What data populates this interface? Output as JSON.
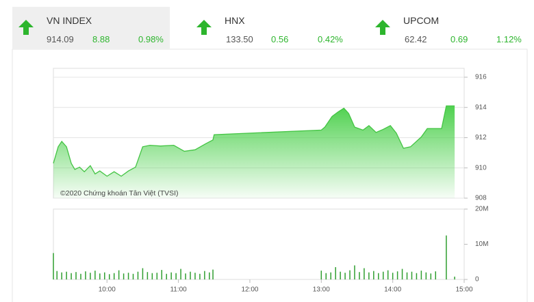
{
  "indices": [
    {
      "name": "VN INDEX",
      "value": "914.09",
      "change": "8.88",
      "percent": "0.98%"
    },
    {
      "name": "HNX",
      "value": "133.50",
      "change": "0.56",
      "percent": "0.42%"
    },
    {
      "name": "UPCOM",
      "value": "62.42",
      "change": "0.69",
      "percent": "1.12%"
    }
  ],
  "chart_data": [
    {
      "type": "area",
      "annotation": "©2020 Chứng khoán Tân Việt (TVSI)",
      "color": "#43c443",
      "x": [
        555,
        559,
        562,
        566,
        570,
        573,
        577,
        581,
        586,
        590,
        594,
        600,
        606,
        612,
        618,
        624,
        630,
        636,
        645,
        656,
        665,
        674,
        683,
        689,
        690,
        780,
        783,
        789,
        794,
        799,
        803,
        808,
        815,
        820,
        826,
        832,
        838,
        843,
        849,
        855,
        864,
        869,
        881,
        885,
        892
      ],
      "values": [
        910.3,
        911.4,
        911.75,
        911.4,
        910.3,
        909.9,
        910.05,
        909.75,
        910.15,
        909.6,
        909.8,
        909.45,
        909.75,
        909.45,
        909.8,
        910.05,
        911.4,
        911.5,
        911.45,
        911.5,
        911.1,
        911.2,
        911.6,
        911.85,
        912.2,
        912.5,
        912.7,
        913.4,
        913.7,
        913.95,
        913.6,
        912.7,
        912.5,
        912.8,
        912.35,
        912.55,
        912.8,
        912.3,
        911.3,
        911.4,
        912.05,
        912.6,
        912.6,
        914.1,
        914.1
      ],
      "xlim": [
        555,
        900
      ],
      "ylim": [
        908,
        916
      ],
      "yticks": [
        908,
        910,
        912,
        914,
        916
      ],
      "grid": true
    },
    {
      "type": "bar",
      "color": "#2f9e2f",
      "x": [
        555,
        558,
        562,
        566,
        570,
        574,
        578,
        582,
        586,
        590,
        594,
        598,
        602,
        606,
        610,
        614,
        618,
        622,
        626,
        630,
        634,
        638,
        642,
        646,
        650,
        654,
        658,
        662,
        666,
        670,
        674,
        678,
        682,
        686,
        689,
        780,
        784,
        788,
        792,
        796,
        800,
        804,
        808,
        812,
        816,
        820,
        824,
        828,
        832,
        836,
        840,
        844,
        848,
        852,
        856,
        860,
        864,
        868,
        872,
        876,
        885,
        892
      ],
      "values": [
        7500000,
        2400000,
        2000000,
        2200000,
        1800000,
        2100000,
        1600000,
        2300000,
        1900000,
        2500000,
        1700000,
        2000000,
        1500000,
        1800000,
        2600000,
        1700000,
        1900000,
        1600000,
        2200000,
        3200000,
        2100000,
        1800000,
        1900000,
        2700000,
        1600000,
        2000000,
        1800000,
        3000000,
        1700000,
        2200000,
        1900000,
        1600000,
        2400000,
        2000000,
        2800000,
        2500000,
        1800000,
        2000000,
        3500000,
        2200000,
        1900000,
        2600000,
        4000000,
        2100000,
        3200000,
        2000000,
        2400000,
        1800000,
        2200000,
        2600000,
        1900000,
        2300000,
        3000000,
        2000000,
        2200000,
        1800000,
        2500000,
        2000000,
        1700000,
        2300000,
        12500000,
        800000
      ],
      "xlim": [
        555,
        900
      ],
      "xticks": [
        {
          "value": 600,
          "label": "10:00"
        },
        {
          "value": 660,
          "label": "11:00"
        },
        {
          "value": 720,
          "label": "12:00"
        },
        {
          "value": 780,
          "label": "13:00"
        },
        {
          "value": 840,
          "label": "14:00"
        },
        {
          "value": 900,
          "label": "15:00"
        }
      ],
      "ylim": [
        0,
        20000000
      ],
      "yticks": [
        0,
        {
          "value": 10000000,
          "label": "10M"
        },
        {
          "value": 20000000,
          "label": "20M"
        }
      ]
    }
  ]
}
